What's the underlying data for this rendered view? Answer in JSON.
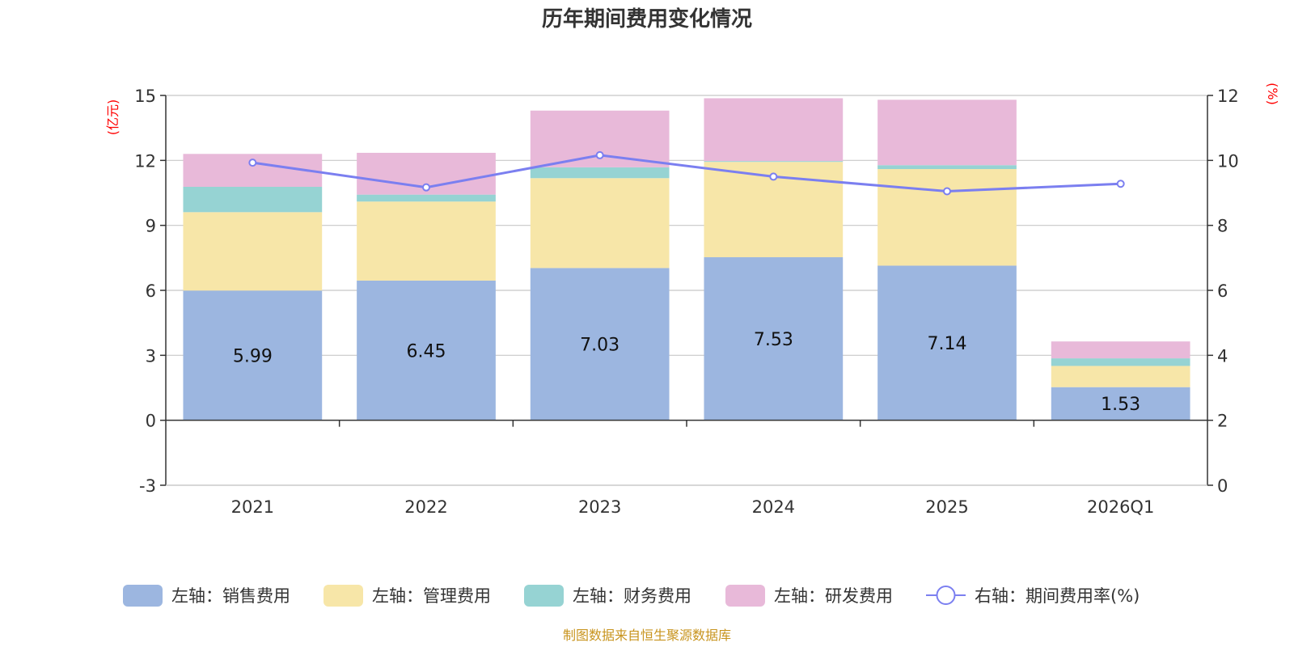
{
  "chart_data": {
    "type": "bar",
    "title": "历年期间费用变化情况",
    "categories": [
      "2021",
      "2022",
      "2023",
      "2024",
      "2025",
      "2026Q1"
    ],
    "left_axis": {
      "unit": "(亿元)",
      "min": -3,
      "max": 15,
      "ticks": [
        -3,
        0,
        3,
        6,
        9,
        12,
        15
      ]
    },
    "right_axis": {
      "unit": "(%)",
      "min": 0,
      "max": 12,
      "ticks": [
        0,
        2,
        4,
        6,
        8,
        10,
        12
      ]
    },
    "series": [
      {
        "name": "左轴：销售费用",
        "type": "bar",
        "axis": "left",
        "color": "#9cb6e0",
        "values": [
          5.99,
          6.45,
          7.03,
          7.53,
          7.14,
          1.53
        ],
        "show_labels": true
      },
      {
        "name": "左轴：管理费用",
        "type": "bar",
        "axis": "left",
        "color": "#f7e6a8",
        "values": [
          3.62,
          3.65,
          4.15,
          4.4,
          4.46,
          0.98
        ]
      },
      {
        "name": "左轴：财务费用",
        "type": "bar",
        "axis": "left",
        "color": "#96d3d3",
        "values": [
          1.17,
          0.32,
          0.5,
          0.04,
          0.18,
          0.35
        ]
      },
      {
        "name": "左轴：研发费用",
        "type": "bar",
        "axis": "left",
        "color": "#e8b9d9",
        "values": [
          1.52,
          1.93,
          2.62,
          2.9,
          3.02,
          0.78
        ]
      },
      {
        "name": "右轴：期间费用率(%)",
        "type": "line",
        "axis": "right",
        "color": "#7b7ff0",
        "values": [
          9.93,
          9.17,
          10.16,
          9.5,
          9.05,
          9.28
        ]
      }
    ],
    "grid": true,
    "legend_position": "bottom"
  },
  "footer": {
    "source": "制图数据来自恒生聚源数据库"
  }
}
